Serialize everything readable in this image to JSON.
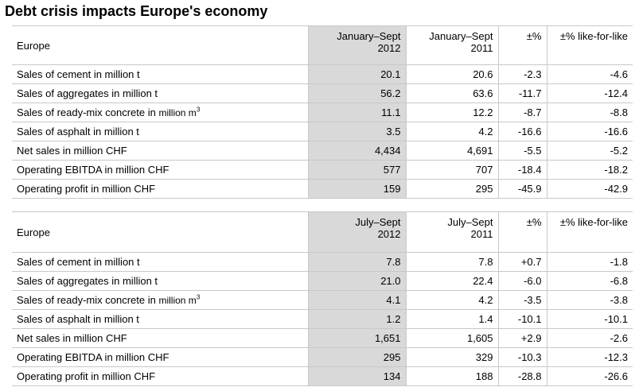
{
  "title": "Debt crisis impacts Europe's economy",
  "tables": [
    {
      "header": {
        "region": "Europe",
        "col1_line1": "January–Sept",
        "col1_line2": "2012",
        "col2_line1": "January–Sept",
        "col2_line2": "2011",
        "col3": "±%",
        "col4": "±% like-for-like"
      },
      "rows": [
        {
          "label": "Sales of cement in million t",
          "v2012": "20.1",
          "v2011": "20.6",
          "pct": "-2.3",
          "lfl": "-4.6"
        },
        {
          "label": "Sales of aggregates in million t",
          "v2012": "56.2",
          "v2011": "63.6",
          "pct": "-11.7",
          "lfl": "-12.4"
        },
        {
          "label": "Sales of ready-mix concrete in ",
          "unit": "million m",
          "sup": "3",
          "v2012": "11.1",
          "v2011": "12.2",
          "pct": "-8.7",
          "lfl": "-8.8"
        },
        {
          "label": "Sales of asphalt in million t",
          "v2012": "3.5",
          "v2011": "4.2",
          "pct": "-16.6",
          "lfl": "-16.6"
        },
        {
          "label": "Net sales in million CHF",
          "v2012": "4,434",
          "v2011": "4,691",
          "pct": "-5.5",
          "lfl": "-5.2"
        },
        {
          "label": "Operating EBITDA in million CHF",
          "v2012": "577",
          "v2011": "707",
          "pct": "-18.4",
          "lfl": "-18.2"
        },
        {
          "label": "Operating profit in million CHF",
          "v2012": "159",
          "v2011": "295",
          "pct": "-45.9",
          "lfl": "-42.9"
        }
      ]
    },
    {
      "header": {
        "region": "Europe",
        "col1_line1": "July–Sept",
        "col1_line2": "2012",
        "col2_line1": "July–Sept",
        "col2_line2": "2011",
        "col3": "±%",
        "col4": "±% like-for-like"
      },
      "rows": [
        {
          "label": "Sales of cement in million t",
          "v2012": "7.8",
          "v2011": "7.8",
          "pct": "+0.7",
          "lfl": "-1.8"
        },
        {
          "label": "Sales of aggregates in million t",
          "v2012": "21.0",
          "v2011": "22.4",
          "pct": "-6.0",
          "lfl": "-6.8"
        },
        {
          "label": "Sales of ready-mix concrete in ",
          "unit": "million m",
          "sup": "3",
          "v2012": "4.1",
          "v2011": "4.2",
          "pct": "-3.5",
          "lfl": "-3.8"
        },
        {
          "label": "Sales of asphalt in million t",
          "v2012": "1.2",
          "v2011": "1.4",
          "pct": "-10.1",
          "lfl": "-10.1"
        },
        {
          "label": "Net sales in million CHF",
          "v2012": "1,651",
          "v2011": "1,605",
          "pct": "+2.9",
          "lfl": "-2.6"
        },
        {
          "label": "Operating EBITDA in million CHF",
          "v2012": "295",
          "v2011": "329",
          "pct": "-10.3",
          "lfl": "-12.3"
        },
        {
          "label": "Operating profit in million CHF",
          "v2012": "134",
          "v2011": "188",
          "pct": "-28.8",
          "lfl": "-26.6"
        }
      ]
    }
  ]
}
